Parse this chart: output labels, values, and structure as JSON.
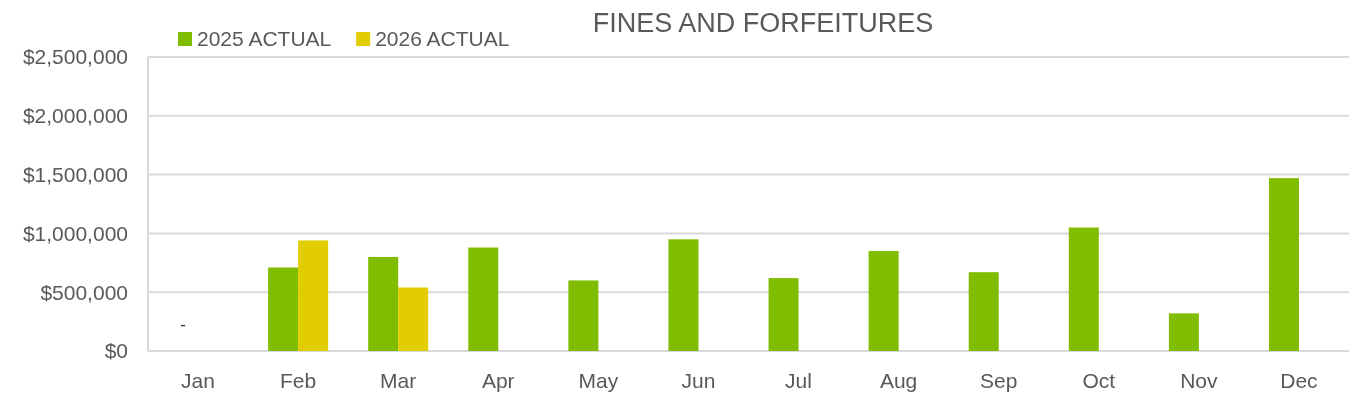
{
  "chart_data": {
    "type": "bar",
    "title": "FINES AND FORFEITURES",
    "categories": [
      "Jan",
      "Feb",
      "Mar",
      "Apr",
      "May",
      "Jun",
      "Jul",
      "Aug",
      "Sep",
      "Oct",
      "Nov",
      "Dec"
    ],
    "series": [
      {
        "name": "2025 ACTUAL",
        "color": "#80bc00",
        "values": [
          0,
          710000,
          800000,
          880000,
          600000,
          950000,
          620000,
          850000,
          670000,
          1050000,
          320000,
          1470000
        ],
        "value_labels": [
          "-",
          null,
          null,
          null,
          null,
          null,
          null,
          null,
          null,
          null,
          null,
          null
        ]
      },
      {
        "name": "2026 ACTUAL",
        "color": "#e1cd00",
        "values": [
          null,
          940000,
          540000,
          null,
          null,
          null,
          null,
          null,
          null,
          null,
          null,
          null
        ]
      }
    ],
    "ylim": [
      0,
      2500000
    ],
    "yticks": [
      {
        "value": 0,
        "label": "$0"
      },
      {
        "value": 500000,
        "label": "$500,000"
      },
      {
        "value": 1000000,
        "label": "$1,000,000"
      },
      {
        "value": 1500000,
        "label": "$1,500,000"
      },
      {
        "value": 2000000,
        "label": "$2,000,000"
      },
      {
        "value": 2500000,
        "label": "$2,500,000"
      }
    ],
    "grid": "y",
    "legend": "top left"
  }
}
